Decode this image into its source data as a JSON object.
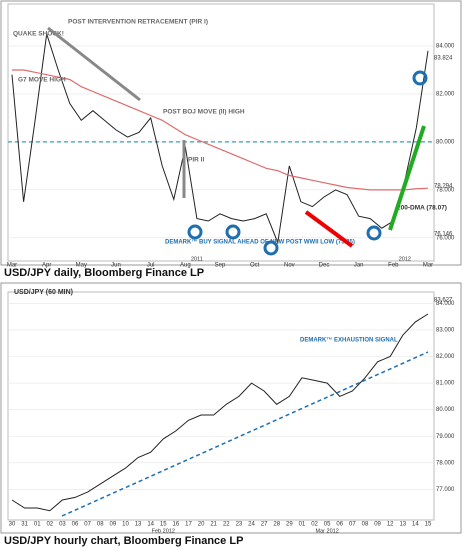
{
  "captions": [
    "USD/JPY daily, Bloomberg Finance LP",
    "USD/JPY hourly chart, Bloomberg Finance LP"
  ],
  "chart_data": [
    {
      "type": "line",
      "categories": [
        "Mar",
        null,
        null,
        "Apr",
        null,
        null,
        "May",
        null,
        null,
        "Jun",
        null,
        null,
        "Jul",
        null,
        null,
        "Aug",
        null,
        null,
        "Sep",
        null,
        null,
        "Oct",
        null,
        null,
        "Nov",
        null,
        null,
        "Dec",
        null,
        null,
        "Jan",
        null,
        null,
        "Feb",
        null,
        null,
        "Mar"
      ],
      "year_labels": [
        "2011",
        "2012"
      ],
      "series": [
        {
          "color": "#222222",
          "values": [
            82.8,
            77.5,
            80.9,
            84.5,
            83.0,
            81.6,
            80.9,
            81.3,
            80.9,
            80.5,
            80.2,
            80.4,
            81.0,
            79.0,
            77.6,
            79.8,
            76.8,
            76.7,
            77.0,
            76.8,
            76.7,
            76.8,
            77.0,
            75.8,
            79.0,
            77.5,
            77.3,
            77.7,
            78.0,
            77.8,
            76.9,
            76.8,
            76.4,
            76.7,
            78.4,
            80.6,
            83.8
          ]
        },
        {
          "color": "#e06a6a",
          "values": [
            83.0,
            83.0,
            82.9,
            82.8,
            82.7,
            82.6,
            82.3,
            82.1,
            81.9,
            81.7,
            81.5,
            81.3,
            81.1,
            80.9,
            80.6,
            80.3,
            80.1,
            79.9,
            79.7,
            79.5,
            79.3,
            79.1,
            78.9,
            78.8,
            78.6,
            78.5,
            78.4,
            78.3,
            78.2,
            78.1,
            78.05,
            78.0,
            78.0,
            78.0,
            78.0,
            78.05,
            78.07
          ]
        }
      ],
      "ylim": [
        75.2,
        85.5
      ],
      "yticks": [
        {
          "value": 76,
          "label": "76.000"
        },
        {
          "value": 78,
          "label": "78.000"
        },
        {
          "value": 80,
          "label": "80.000"
        },
        {
          "value": 82,
          "label": "82.000"
        },
        {
          "value": 84,
          "label": "84.000"
        }
      ],
      "reference_line": 80,
      "annotations": [
        "QUAKE SHOCK!",
        "G7 MOVE HIGH",
        "POST INTERVENTION RETRACEMENT (PIR I)",
        "POST BOJ MOVE (II) HIGH",
        "PIR II",
        "DEMARK™ BUY SIGNAL AHEAD OF NEW POST WWII LOW (75.35)",
        "200-DMA (78.07)"
      ],
      "price_labels": [
        "83.824",
        "78.294",
        "76.146"
      ]
    },
    {
      "type": "line",
      "title": "USD/JPY (60 MIN)",
      "categories": [
        "30",
        "31",
        "01",
        "02",
        "03",
        "06",
        "07",
        "08",
        "09",
        "10",
        "13",
        "14",
        "15",
        "16",
        "17",
        "20",
        "21",
        "22",
        "23",
        "24",
        "27",
        "28",
        "29",
        "01",
        "02",
        "05",
        "06",
        "07",
        "08",
        "09",
        "12",
        "13",
        "14",
        "15"
      ],
      "month_labels": [
        "Feb 2012",
        "Mar 2012"
      ],
      "series": [
        {
          "color": "#222222",
          "values": [
            76.6,
            76.3,
            76.3,
            76.2,
            76.6,
            76.7,
            76.9,
            77.2,
            77.5,
            77.8,
            78.2,
            78.4,
            78.9,
            79.2,
            79.6,
            79.8,
            79.8,
            80.2,
            80.5,
            81.0,
            80.7,
            80.2,
            80.5,
            81.2,
            81.1,
            81.0,
            80.5,
            80.7,
            81.2,
            81.8,
            82.0,
            82.8,
            83.3,
            83.6
          ]
        }
      ],
      "ylim": [
        76.0,
        84.2
      ],
      "yticks": [
        {
          "value": 77,
          "label": "77.000"
        },
        {
          "value": 78,
          "label": "78.000"
        },
        {
          "value": 79,
          "label": "79.000"
        },
        {
          "value": 80,
          "label": "80.000"
        },
        {
          "value": 81,
          "label": "81.000"
        },
        {
          "value": 82,
          "label": "82.000"
        },
        {
          "value": 83,
          "label": "83.000"
        },
        {
          "value": 84,
          "label": "84.000"
        }
      ],
      "annotations": [
        "DEMARK™ EXHAUSTION SIGNAL"
      ],
      "price_labels": [
        "83.627"
      ]
    }
  ]
}
